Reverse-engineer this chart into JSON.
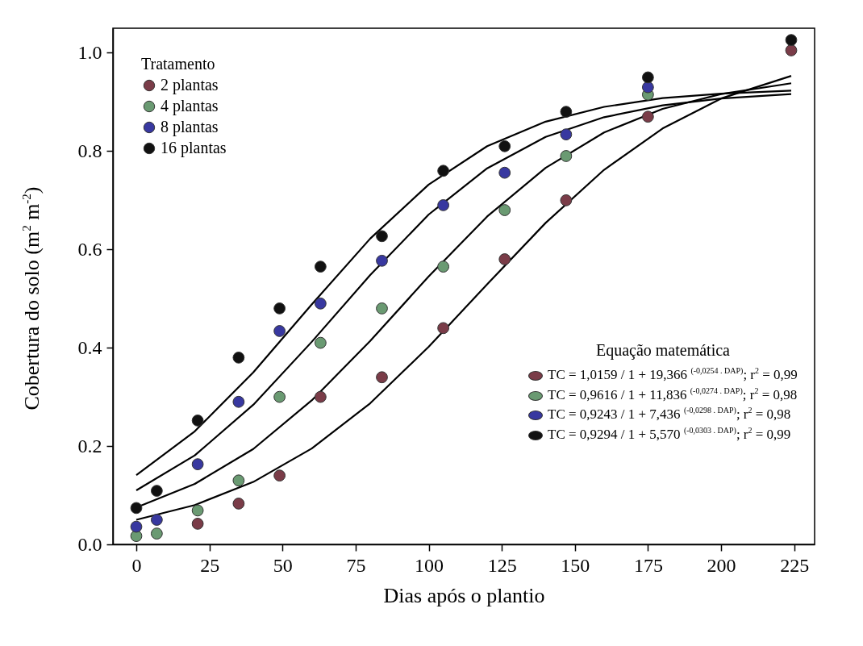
{
  "chart_data": {
    "type": "scatter",
    "xlabel": "Dias após o plantio",
    "ylabel": "Cobertura do solo (m$^{2}$ m$^{-2}$)",
    "legend_title": "Tratamento",
    "legend": "top left",
    "marker": "circle",
    "grid": false,
    "xlim": [
      -8,
      232
    ],
    "xticks": [
      0,
      25,
      50,
      75,
      100,
      125,
      150,
      175,
      200,
      225
    ],
    "ylim": [
      0,
      1.05
    ],
    "yticks": [
      {
        "value": 0,
        "label": "0.0"
      },
      0.2,
      0.4,
      0.6,
      0.8,
      {
        "value": 1,
        "label": "1.0"
      }
    ],
    "x": [
      0,
      7,
      21,
      35,
      49,
      63,
      84,
      105,
      126,
      147,
      175,
      224
    ],
    "series": [
      {
        "name": "2 plantas",
        "color": "#7a3c48",
        "values": [
          null,
          null,
          0.042,
          0.083,
          0.14,
          0.3,
          0.34,
          0.44,
          0.58,
          0.7,
          0.87,
          1.005
        ]
      },
      {
        "name": "4 plantas",
        "color": "#6a9a72",
        "values": [
          0.017,
          0.022,
          0.069,
          0.13,
          0.3,
          0.41,
          0.48,
          0.565,
          0.68,
          0.79,
          0.915,
          null
        ]
      },
      {
        "name": "8 plantas",
        "color": "#3838a0",
        "values": [
          0.036,
          0.05,
          0.163,
          0.29,
          0.434,
          0.49,
          0.577,
          0.69,
          0.756,
          0.834,
          0.93,
          null
        ]
      },
      {
        "name": "16 plantas",
        "color": "#111111",
        "values": [
          0.074,
          0.109,
          0.252,
          0.38,
          0.48,
          0.565,
          0.627,
          0.76,
          0.81,
          0.88,
          0.95,
          1.026
        ]
      },
      {
        "type": "line",
        "marker": "none",
        "color": "#000000",
        "x": [
          0,
          20,
          40,
          60,
          80,
          100,
          120,
          140,
          160,
          180,
          200,
          224
        ],
        "values": [
          0.05,
          0.08,
          0.127,
          0.195,
          0.287,
          0.402,
          0.529,
          0.654,
          0.762,
          0.846,
          0.907,
          0.953
        ]
      },
      {
        "type": "line",
        "marker": "none",
        "color": "#000000",
        "x": [
          0,
          20,
          40,
          60,
          80,
          100,
          120,
          140,
          160,
          180,
          200,
          224
        ],
        "values": [
          0.075,
          0.123,
          0.194,
          0.293,
          0.414,
          0.545,
          0.667,
          0.766,
          0.838,
          0.886,
          0.916,
          0.938
        ]
      },
      {
        "type": "line",
        "marker": "none",
        "color": "#000000",
        "x": [
          0,
          20,
          40,
          60,
          80,
          100,
          120,
          140,
          160,
          180,
          200,
          224
        ],
        "values": [
          0.11,
          0.181,
          0.284,
          0.412,
          0.548,
          0.671,
          0.765,
          0.829,
          0.869,
          0.893,
          0.907,
          0.916
        ]
      },
      {
        "type": "line",
        "marker": "none",
        "color": "#000000",
        "x": [
          0,
          20,
          40,
          60,
          80,
          100,
          120,
          140,
          160,
          180,
          200,
          224
        ],
        "values": [
          0.141,
          0.23,
          0.35,
          0.488,
          0.622,
          0.732,
          0.81,
          0.86,
          0.89,
          0.908,
          0.917,
          0.923
        ]
      }
    ],
    "annotations": [
      "Equação matemática",
      "TC = 1,0159 / 1 + 19,366 $^{(-0,0254 . DAP)}$; r$^{2}$ = 0,99",
      "TC = 0,9616 / 1 + 11,836 $^{(-0,0274 . DAP)}$; r$^{2}$ = 0,98",
      "TC = 0,9243 / 1 + 7,436 $^{(-0,0298 . DAP)}$; r$^{2}$ = 0,98",
      "TC = 0,9294 / 1 + 5,570 $^{(-0,0303 . DAP)}$; r$^{2}$ = 0,99"
    ]
  }
}
